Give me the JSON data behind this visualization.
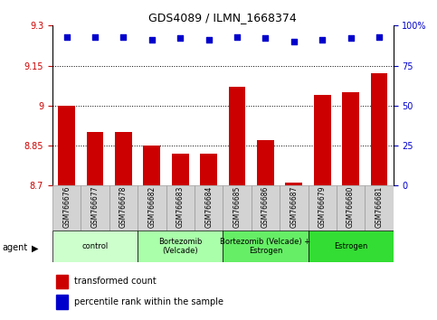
{
  "title": "GDS4089 / ILMN_1668374",
  "samples": [
    "GSM766676",
    "GSM766677",
    "GSM766678",
    "GSM766682",
    "GSM766683",
    "GSM766684",
    "GSM766685",
    "GSM766686",
    "GSM766687",
    "GSM766679",
    "GSM766680",
    "GSM766681"
  ],
  "transformed_count": [
    9.0,
    8.9,
    8.9,
    8.85,
    8.82,
    8.82,
    9.07,
    8.87,
    8.71,
    9.04,
    9.05,
    9.12
  ],
  "percentile_rank": [
    93,
    93,
    93,
    91,
    92,
    91,
    93,
    92,
    90,
    91,
    92,
    93
  ],
  "bar_color": "#cc0000",
  "dot_color": "#0000cc",
  "ylim_left": [
    8.7,
    9.3
  ],
  "ylim_right": [
    0,
    100
  ],
  "yticks_left": [
    8.7,
    8.85,
    9.0,
    9.15,
    9.3
  ],
  "yticks_right": [
    0,
    25,
    50,
    75,
    100
  ],
  "ytick_labels_left": [
    "8.7",
    "8.85",
    "9",
    "9.15",
    "9.3"
  ],
  "ytick_labels_right": [
    "0",
    "25",
    "50",
    "75",
    "100%"
  ],
  "hlines": [
    8.85,
    9.0,
    9.15
  ],
  "groups": [
    {
      "label": "control",
      "start": 0,
      "end": 3,
      "color": "#ccffcc"
    },
    {
      "label": "Bortezomib\n(Velcade)",
      "start": 3,
      "end": 6,
      "color": "#aaffaa"
    },
    {
      "label": "Bortezomib (Velcade) +\nEstrogen",
      "start": 6,
      "end": 9,
      "color": "#66ee66"
    },
    {
      "label": "Estrogen",
      "start": 9,
      "end": 12,
      "color": "#33dd33"
    }
  ],
  "legend_bar_label": "transformed count",
  "legend_dot_label": "percentile rank within the sample",
  "agent_label": "agent",
  "bar_label_color": "#cc0000",
  "dot_label_color": "#0000cc",
  "sample_box_color": "#d3d3d3",
  "sample_box_edge": "#999999"
}
